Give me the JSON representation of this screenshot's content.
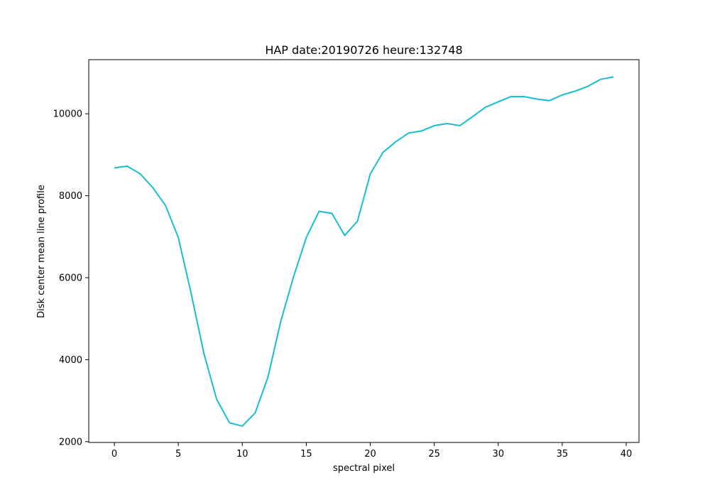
{
  "chart_data": {
    "type": "line",
    "title": "HAP date:20190726 heure:132748",
    "xlabel": "spectral pixel",
    "ylabel": "Disk center mean line profile",
    "xlim": [
      -2,
      41
    ],
    "ylim": [
      1980,
      11320
    ],
    "xticks": [
      0,
      5,
      10,
      15,
      20,
      25,
      30,
      35,
      40
    ],
    "yticks": [
      2000,
      4000,
      6000,
      8000,
      10000
    ],
    "grid": false,
    "line_color": "#17becf",
    "series": [
      {
        "x": [
          0,
          1,
          2,
          3,
          4,
          5,
          6,
          7,
          8,
          9,
          10,
          11,
          12,
          13,
          14,
          15,
          16,
          17,
          18,
          19,
          20,
          21,
          22,
          23,
          24,
          25,
          26,
          27,
          28,
          29,
          30,
          31,
          32,
          33,
          34,
          35,
          36,
          37,
          38,
          39
        ],
        "values": [
          8680,
          8720,
          8540,
          8200,
          7760,
          6980,
          5620,
          4150,
          3030,
          2460,
          2380,
          2700,
          3570,
          4930,
          6020,
          6980,
          7620,
          7570,
          7030,
          7380,
          8530,
          9060,
          9320,
          9530,
          9580,
          9710,
          9760,
          9710,
          9930,
          10160,
          10290,
          10420,
          10420,
          10360,
          10320,
          10460,
          10550,
          10670,
          10840,
          10900
        ]
      }
    ]
  }
}
